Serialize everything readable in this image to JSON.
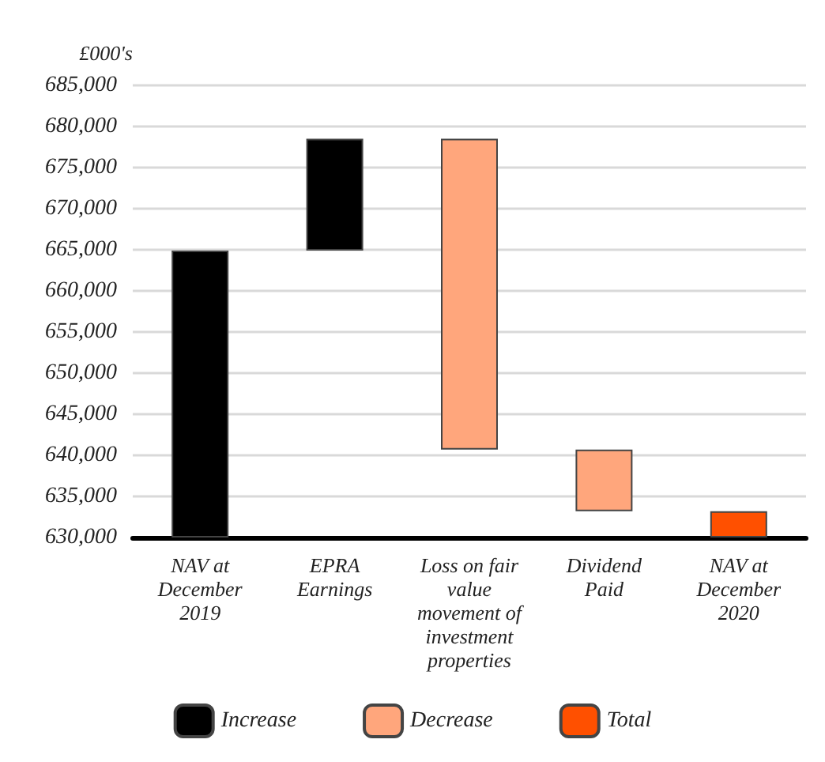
{
  "chart_data": {
    "type": "bar",
    "ylabel": "£000's",
    "categories": [
      "NAV at December 2019",
      "EPRA Earnings",
      "Loss on fair value movement of investment properties",
      "Dividend Paid",
      "NAV at December 2020"
    ],
    "series": [
      {
        "name": "Increase",
        "color": "#000000",
        "base": [
          630000,
          664900,
          null,
          null,
          null
        ],
        "values": [
          34900,
          13600,
          null,
          null,
          null
        ]
      },
      {
        "name": "Decrease",
        "color": "#ffa67c",
        "base": [
          null,
          null,
          640700,
          633200,
          null
        ],
        "values": [
          null,
          null,
          37800,
          7500,
          null
        ]
      },
      {
        "name": "Total",
        "color": "#ff5000",
        "base": [
          null,
          null,
          null,
          null,
          630000
        ],
        "values": [
          null,
          null,
          null,
          null,
          3200
        ]
      }
    ],
    "ylim": [
      630000,
      685000
    ],
    "yticks": [
      {
        "value": 630000,
        "label": "630,000"
      },
      {
        "value": 635000,
        "label": "635,000"
      },
      {
        "value": 640000,
        "label": "640,000"
      },
      {
        "value": 645000,
        "label": "645,000"
      },
      {
        "value": 650000,
        "label": "650,000"
      },
      {
        "value": 655000,
        "label": "655,000"
      },
      {
        "value": 660000,
        "label": "660,000"
      },
      {
        "value": 665000,
        "label": "665,000"
      },
      {
        "value": 670000,
        "label": "670,000"
      },
      {
        "value": 675000,
        "label": "675,000"
      },
      {
        "value": 680000,
        "label": "680,000"
      },
      {
        "value": 685000,
        "label": "685,000"
      }
    ],
    "grid": "y",
    "legend": "bottom"
  }
}
